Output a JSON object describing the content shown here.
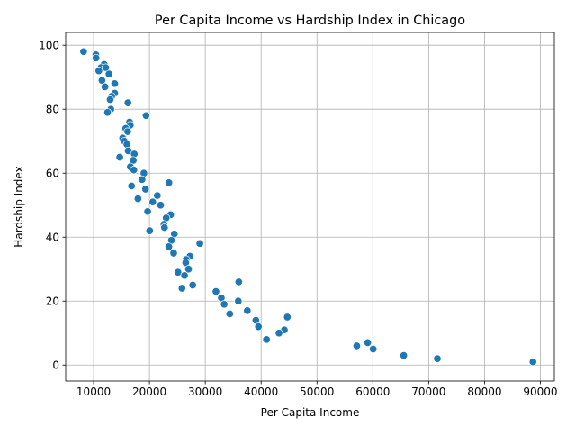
{
  "chart_data": {
    "type": "scatter",
    "title": "Per Capita Income vs Hardship Index in Chicago",
    "xlabel": "Per Capita Income",
    "ylabel": "Hardship Index",
    "xlim": [
      5000,
      92500
    ],
    "ylim": [
      -5,
      104
    ],
    "xticks": [
      10000,
      20000,
      30000,
      40000,
      50000,
      60000,
      70000,
      80000,
      90000
    ],
    "yticks": [
      0,
      20,
      40,
      60,
      80,
      100
    ],
    "grid": true,
    "legend": "none",
    "marker_color": "#1f77b4",
    "points": [
      {
        "x": 8201,
        "y": 98
      },
      {
        "x": 10402,
        "y": 97
      },
      {
        "x": 10432,
        "y": 96
      },
      {
        "x": 11888,
        "y": 94
      },
      {
        "x": 11317,
        "y": 93
      },
      {
        "x": 12171,
        "y": 93
      },
      {
        "x": 10934,
        "y": 92
      },
      {
        "x": 12765,
        "y": 91
      },
      {
        "x": 11500,
        "y": 89
      },
      {
        "x": 13781,
        "y": 88
      },
      {
        "x": 12034,
        "y": 87
      },
      {
        "x": 13785,
        "y": 85
      },
      {
        "x": 13231,
        "y": 84
      },
      {
        "x": 12961,
        "y": 83
      },
      {
        "x": 16148,
        "y": 82
      },
      {
        "x": 13089,
        "y": 80
      },
      {
        "x": 12500,
        "y": 79
      },
      {
        "x": 19398,
        "y": 78
      },
      {
        "x": 16444,
        "y": 76
      },
      {
        "x": 16563,
        "y": 75
      },
      {
        "x": 15754,
        "y": 74
      },
      {
        "x": 16100,
        "y": 73
      },
      {
        "x": 15200,
        "y": 71
      },
      {
        "x": 15500,
        "y": 70
      },
      {
        "x": 15957,
        "y": 69
      },
      {
        "x": 16200,
        "y": 67
      },
      {
        "x": 17285,
        "y": 66
      },
      {
        "x": 14685,
        "y": 65
      },
      {
        "x": 17104,
        "y": 64
      },
      {
        "x": 16579,
        "y": 62
      },
      {
        "x": 17200,
        "y": 61
      },
      {
        "x": 19000,
        "y": 60
      },
      {
        "x": 18672,
        "y": 58
      },
      {
        "x": 23482,
        "y": 57
      },
      {
        "x": 16800,
        "y": 56
      },
      {
        "x": 19300,
        "y": 55
      },
      {
        "x": 21411,
        "y": 53
      },
      {
        "x": 17949,
        "y": 52
      },
      {
        "x": 20588,
        "y": 51
      },
      {
        "x": 22000,
        "y": 50
      },
      {
        "x": 19678,
        "y": 48
      },
      {
        "x": 23791,
        "y": 47
      },
      {
        "x": 23000,
        "y": 46
      },
      {
        "x": 22600,
        "y": 44
      },
      {
        "x": 22694,
        "y": 43
      },
      {
        "x": 20039,
        "y": 42
      },
      {
        "x": 24454,
        "y": 41
      },
      {
        "x": 23940,
        "y": 39
      },
      {
        "x": 29026,
        "y": 38
      },
      {
        "x": 23472,
        "y": 37
      },
      {
        "x": 24336,
        "y": 35
      },
      {
        "x": 27249,
        "y": 34
      },
      {
        "x": 26576,
        "y": 33
      },
      {
        "x": 26500,
        "y": 32
      },
      {
        "x": 27006,
        "y": 30
      },
      {
        "x": 25113,
        "y": 29
      },
      {
        "x": 26282,
        "y": 28
      },
      {
        "x": 36000,
        "y": 26
      },
      {
        "x": 27751,
        "y": 25
      },
      {
        "x": 25828,
        "y": 24
      },
      {
        "x": 31908,
        "y": 23
      },
      {
        "x": 32875,
        "y": 21
      },
      {
        "x": 35911,
        "y": 20
      },
      {
        "x": 33385,
        "y": 19
      },
      {
        "x": 37524,
        "y": 17
      },
      {
        "x": 34381,
        "y": 16
      },
      {
        "x": 44689,
        "y": 15
      },
      {
        "x": 39056,
        "y": 14
      },
      {
        "x": 39523,
        "y": 12
      },
      {
        "x": 44164,
        "y": 11
      },
      {
        "x": 43198,
        "y": 10
      },
      {
        "x": 40959,
        "y": 8
      },
      {
        "x": 59077,
        "y": 7
      },
      {
        "x": 57123,
        "y": 6
      },
      {
        "x": 60058,
        "y": 5
      },
      {
        "x": 65526,
        "y": 3
      },
      {
        "x": 71551,
        "y": 2
      },
      {
        "x": 88669,
        "y": 1
      }
    ]
  }
}
